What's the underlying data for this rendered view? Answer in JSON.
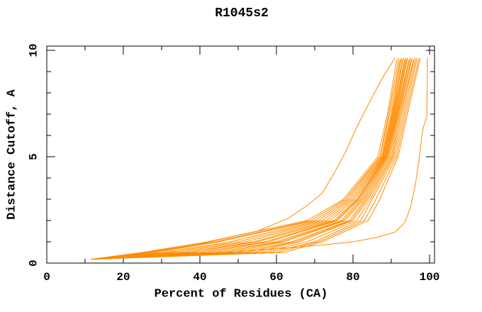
{
  "chart_data": {
    "type": "line",
    "title": "R1045s2",
    "xlabel": "Percent of Residues (CA)",
    "ylabel": "Distance Cutoff, A",
    "xlim": [
      0,
      100
    ],
    "ylim": [
      0,
      10
    ],
    "x_major_ticks": [
      0,
      20,
      40,
      60,
      80,
      100
    ],
    "x_minor_ticks": [
      10,
      30,
      50,
      70,
      90
    ],
    "y_major_ticks": [
      0,
      5,
      10
    ],
    "y_minor_ticks": [
      1,
      2,
      3,
      4,
      6,
      7,
      8,
      9
    ],
    "grid": false,
    "legend_position": "none",
    "frame": "box-with-inside-ticks",
    "series_color": "#FF8C00",
    "axis_color": "#000000",
    "series": [
      {
        "points": [
          [
            11.5,
            0.18
          ],
          [
            25,
            0.5
          ],
          [
            42,
            1
          ],
          [
            68,
            2
          ],
          [
            77.5,
            3
          ],
          [
            86.5,
            5
          ],
          [
            89,
            7
          ],
          [
            91.5,
            9.6
          ]
        ]
      },
      {
        "points": [
          [
            11.5,
            0.18
          ],
          [
            27,
            0.5
          ],
          [
            44,
            1
          ],
          [
            69,
            2
          ],
          [
            78,
            3
          ],
          [
            87,
            5
          ],
          [
            89.3,
            7
          ],
          [
            92,
            9.65
          ]
        ]
      },
      {
        "points": [
          [
            11.5,
            0.18
          ],
          [
            28,
            0.5
          ],
          [
            45,
            1
          ],
          [
            70,
            2
          ],
          [
            78.5,
            3
          ],
          [
            87,
            5
          ],
          [
            89.6,
            7
          ],
          [
            92.3,
            9.55
          ]
        ]
      },
      {
        "points": [
          [
            11.5,
            0.18
          ],
          [
            30,
            0.5
          ],
          [
            48,
            1
          ],
          [
            71,
            2
          ],
          [
            79,
            3
          ],
          [
            87.3,
            5
          ],
          [
            90,
            7
          ],
          [
            92.6,
            9.65
          ]
        ]
      },
      {
        "points": [
          [
            11.5,
            0.18
          ],
          [
            32,
            0.5
          ],
          [
            50,
            1
          ],
          [
            72,
            2
          ],
          [
            79.5,
            3
          ],
          [
            87.6,
            5
          ],
          [
            90.2,
            7
          ],
          [
            92.9,
            9.6
          ]
        ]
      },
      {
        "points": [
          [
            11.5,
            0.18
          ],
          [
            34,
            0.5
          ],
          [
            52,
            1
          ],
          [
            73,
            2
          ],
          [
            80,
            3
          ],
          [
            87.8,
            5
          ],
          [
            90.4,
            7
          ],
          [
            93.2,
            9.65
          ]
        ]
      },
      {
        "points": [
          [
            11.5,
            0.18
          ],
          [
            36,
            0.5
          ],
          [
            54,
            1
          ],
          [
            74,
            2
          ],
          [
            80.5,
            3
          ],
          [
            88,
            5
          ],
          [
            90.6,
            7
          ],
          [
            93.5,
            9.55
          ]
        ]
      },
      {
        "points": [
          [
            11.5,
            0.18
          ],
          [
            38,
            0.5
          ],
          [
            55,
            1
          ],
          [
            75,
            2
          ],
          [
            81,
            3
          ],
          [
            88.2,
            5
          ],
          [
            90.8,
            7
          ],
          [
            93.8,
            9.65
          ]
        ]
      },
      {
        "points": [
          [
            11.5,
            0.18
          ],
          [
            40,
            0.5
          ],
          [
            57,
            1
          ],
          [
            75.5,
            2
          ],
          [
            81.3,
            3
          ],
          [
            88.4,
            5
          ],
          [
            91,
            7
          ],
          [
            94,
            9.6
          ]
        ]
      },
      {
        "points": [
          [
            11.5,
            0.18
          ],
          [
            42,
            0.5
          ],
          [
            58,
            1
          ],
          [
            76,
            2
          ],
          [
            81.6,
            3
          ],
          [
            88.6,
            5
          ],
          [
            91.2,
            7
          ],
          [
            94.3,
            9.65
          ]
        ]
      },
      {
        "points": [
          [
            11.5,
            0.18
          ],
          [
            44,
            0.5
          ],
          [
            60,
            1
          ],
          [
            77,
            2
          ],
          [
            82,
            3
          ],
          [
            88.8,
            5
          ],
          [
            91.4,
            7
          ],
          [
            94.6,
            9.55
          ]
        ]
      },
      {
        "points": [
          [
            11.5,
            0.18
          ],
          [
            46,
            0.5
          ],
          [
            61,
            1
          ],
          [
            77.5,
            2
          ],
          [
            82.4,
            3
          ],
          [
            89,
            5
          ],
          [
            91.6,
            7
          ],
          [
            94.9,
            9.65
          ]
        ]
      },
      {
        "points": [
          [
            11.5,
            0.18
          ],
          [
            48,
            0.5
          ],
          [
            62,
            1
          ],
          [
            78,
            2
          ],
          [
            82.8,
            3
          ],
          [
            89.3,
            5
          ],
          [
            91.8,
            7
          ],
          [
            95.2,
            9.6
          ]
        ]
      },
      {
        "points": [
          [
            11.5,
            0.18
          ],
          [
            50,
            0.5
          ],
          [
            64,
            1
          ],
          [
            79,
            2
          ],
          [
            83.2,
            3
          ],
          [
            89.6,
            5
          ],
          [
            92,
            7
          ],
          [
            95.5,
            9.65
          ]
        ]
      },
      {
        "points": [
          [
            11.5,
            0.18
          ],
          [
            52,
            0.5
          ],
          [
            65,
            1
          ],
          [
            79.5,
            2
          ],
          [
            83.6,
            3
          ],
          [
            90,
            5
          ],
          [
            92.3,
            7
          ],
          [
            95.8,
            9.55
          ]
        ]
      },
      {
        "points": [
          [
            11.5,
            0.18
          ],
          [
            54,
            0.5
          ],
          [
            66,
            1
          ],
          [
            80,
            2
          ],
          [
            84,
            3
          ],
          [
            90.3,
            5
          ],
          [
            92.6,
            7
          ],
          [
            96.1,
            9.65
          ]
        ]
      },
      {
        "points": [
          [
            11.5,
            0.18
          ],
          [
            56,
            0.5
          ],
          [
            68,
            1
          ],
          [
            81,
            2
          ],
          [
            84.5,
            3
          ],
          [
            90.6,
            5
          ],
          [
            93,
            7
          ],
          [
            96.4,
            9.6
          ]
        ]
      },
      {
        "points": [
          [
            11.5,
            0.18
          ],
          [
            58,
            0.5
          ],
          [
            70,
            1
          ],
          [
            82,
            2
          ],
          [
            85,
            3
          ],
          [
            91,
            5
          ],
          [
            93.4,
            7
          ],
          [
            96.8,
            9.65
          ]
        ]
      },
      {
        "points": [
          [
            11.5,
            0.18
          ],
          [
            60,
            0.5
          ],
          [
            71,
            1
          ],
          [
            83,
            2
          ],
          [
            86,
            3
          ],
          [
            91.4,
            5
          ],
          [
            93.8,
            7
          ],
          [
            97.2,
            9.6
          ]
        ]
      },
      {
        "points": [
          [
            11.5,
            0.18
          ],
          [
            62,
            0.5
          ],
          [
            72,
            1
          ],
          [
            84,
            2
          ],
          [
            87,
            3
          ],
          [
            91.8,
            5
          ],
          [
            94.2,
            7
          ],
          [
            97.6,
            9.65
          ]
        ]
      },
      {
        "points": [
          [
            11.5,
            0.18
          ],
          [
            26,
            0.5
          ],
          [
            40,
            0.9
          ],
          [
            55,
            1.5
          ],
          [
            63,
            2.1
          ],
          [
            68,
            2.7
          ],
          [
            72,
            3.3
          ],
          [
            75,
            4.2
          ],
          [
            78,
            5.2
          ],
          [
            81,
            6.4
          ],
          [
            85,
            7.8
          ],
          [
            88,
            8.8
          ],
          [
            91,
            9.65
          ]
        ]
      },
      {
        "points": [
          [
            11.5,
            0.18
          ],
          [
            35,
            0.4
          ],
          [
            50,
            0.55
          ],
          [
            62,
            0.7
          ],
          [
            72,
            0.85
          ],
          [
            80,
            1.0
          ],
          [
            86,
            1.2
          ],
          [
            91,
            1.45
          ],
          [
            93.5,
            1.9
          ],
          [
            95,
            2.6
          ],
          [
            96.2,
            3.6
          ],
          [
            97.2,
            4.8
          ],
          [
            98,
            6
          ],
          [
            98.4,
            6.4
          ],
          [
            99.3,
            6.9
          ],
          [
            99.4,
            8.5
          ],
          [
            99.45,
            9.65
          ]
        ]
      }
    ]
  }
}
